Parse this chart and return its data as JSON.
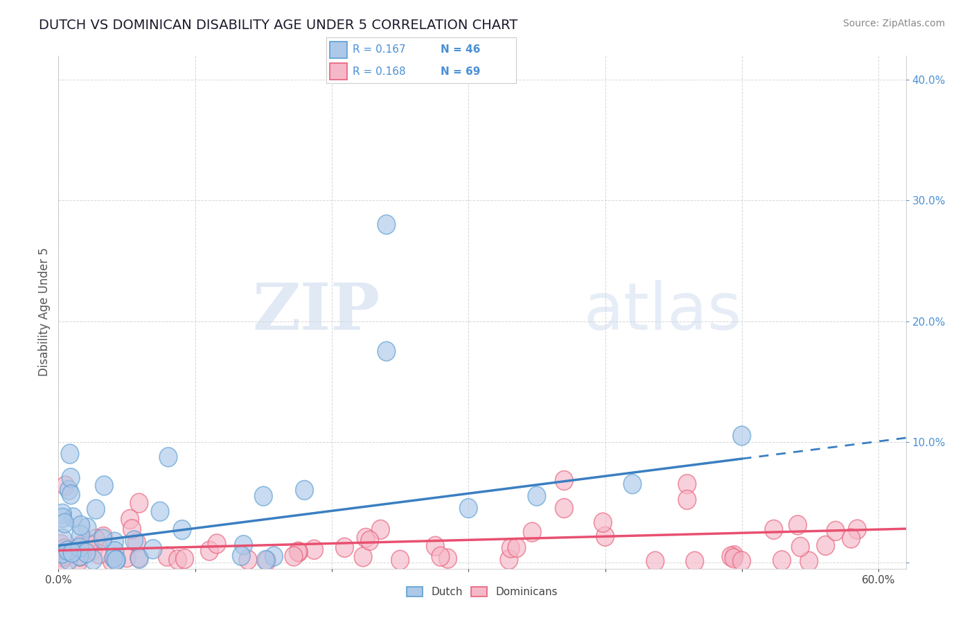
{
  "title": "DUTCH VS DOMINICAN DISABILITY AGE UNDER 5 CORRELATION CHART",
  "source": "Source: ZipAtlas.com",
  "ylabel": "Disability Age Under 5",
  "xlim": [
    0.0,
    0.62
  ],
  "ylim": [
    -0.005,
    0.42
  ],
  "dutch_R": 0.167,
  "dutch_N": 46,
  "dominican_R": 0.168,
  "dominican_N": 69,
  "dutch_color": "#adc8e8",
  "dutch_edge_color": "#5a9fd4",
  "dominican_color": "#f5b8c8",
  "dominican_edge_color": "#e8607a",
  "dutch_line_color": "#3a7fc1",
  "dominican_line_color": "#e85070",
  "background_color": "#ffffff",
  "grid_color": "#cccccc",
  "legend_color": "#4a90d4",
  "watermark_zip": "ZIP",
  "watermark_atlas": "atlas",
  "title_color": "#1a1a2e",
  "source_color": "#888888",
  "ylabel_color": "#555555",
  "tick_color": "#4a90d4",
  "ytick_label_color": "#4a90d4",
  "dutch_line_y0": 0.014,
  "dutch_line_y1": 0.086,
  "dominican_line_y0": 0.01,
  "dominican_line_y1": 0.028
}
